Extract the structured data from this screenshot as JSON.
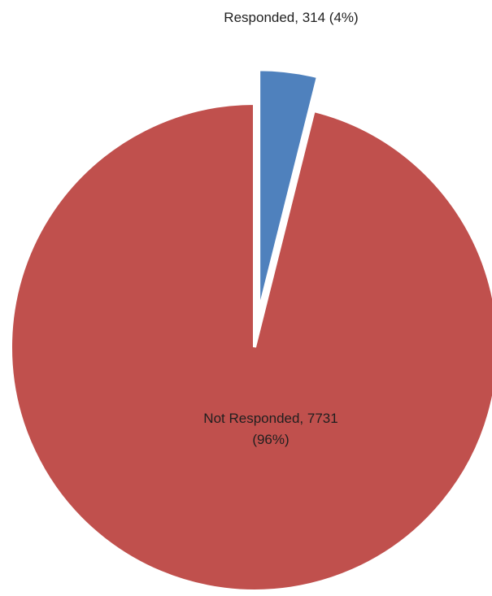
{
  "chart_data": {
    "type": "pie",
    "title": "",
    "slices": [
      {
        "label": "Responded, 314 (4%)",
        "lines": [
          "Responded, 314 (4%)"
        ],
        "category": "Responded",
        "value": 314,
        "percent": 4,
        "color": "#4f81bd",
        "exploded": true
      },
      {
        "label": "Not Responded, 7731 (96%)",
        "lines": [
          "Not Responded, 7731",
          "(96%)"
        ],
        "category": "Not Responded",
        "value": 7731,
        "percent": 96,
        "color": "#c0504d",
        "exploded": false
      }
    ],
    "legend": "none",
    "start_angle": "12 o'clock",
    "direction": "clockwise"
  }
}
